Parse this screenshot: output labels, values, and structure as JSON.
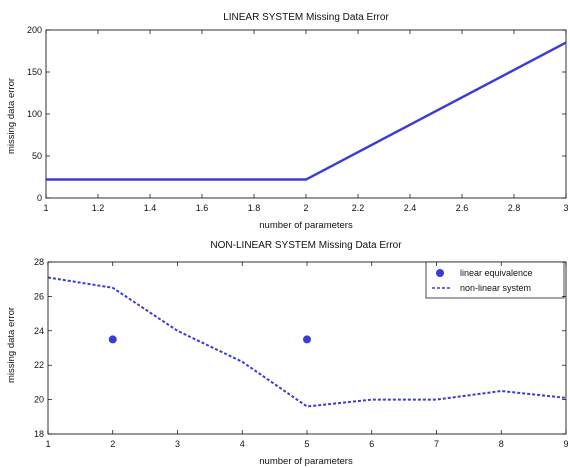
{
  "chart_data": [
    {
      "type": "line",
      "title": "LINEAR SYSTEM   Missing Data Error",
      "xlabel": "number of parameters",
      "ylabel": "missing data error",
      "xlim": [
        1,
        3
      ],
      "ylim": [
        0,
        200
      ],
      "xticks": [
        "1",
        "1.2",
        "1.4",
        "1.6",
        "1.8",
        "2",
        "2.2",
        "2.4",
        "2.6",
        "2.8",
        "3"
      ],
      "yticks": [
        "0",
        "50",
        "100",
        "150",
        "200"
      ],
      "series": [
        {
          "x": [
            1,
            2,
            3
          ],
          "y": [
            22,
            22,
            185
          ],
          "style": "solid",
          "color": "#3b3bd6"
        }
      ],
      "grid": false
    },
    {
      "type": "line",
      "title": "NON-LINEAR SYSTEM   Missing Data Error",
      "xlabel": "number of parameters",
      "ylabel": "missing data error",
      "xlim": [
        1,
        9
      ],
      "ylim": [
        18,
        28
      ],
      "xticks": [
        "1",
        "2",
        "3",
        "4",
        "5",
        "6",
        "7",
        "8",
        "9"
      ],
      "yticks": [
        "18",
        "20",
        "22",
        "24",
        "26",
        "28"
      ],
      "series": [
        {
          "name": "linear equivalence",
          "style": "markers",
          "color": "#3b3bd6",
          "x": [
            2,
            5
          ],
          "y": [
            23.5,
            23.5
          ]
        },
        {
          "name": "non-linear system",
          "style": "dashed",
          "color": "#3b3bd6",
          "x": [
            1,
            2,
            3,
            4,
            5,
            6,
            7,
            8,
            9
          ],
          "y": [
            27.1,
            26.5,
            24.0,
            22.2,
            19.6,
            20.0,
            20.0,
            20.5,
            20.1
          ]
        }
      ],
      "legend": "top-right",
      "grid": false
    }
  ]
}
